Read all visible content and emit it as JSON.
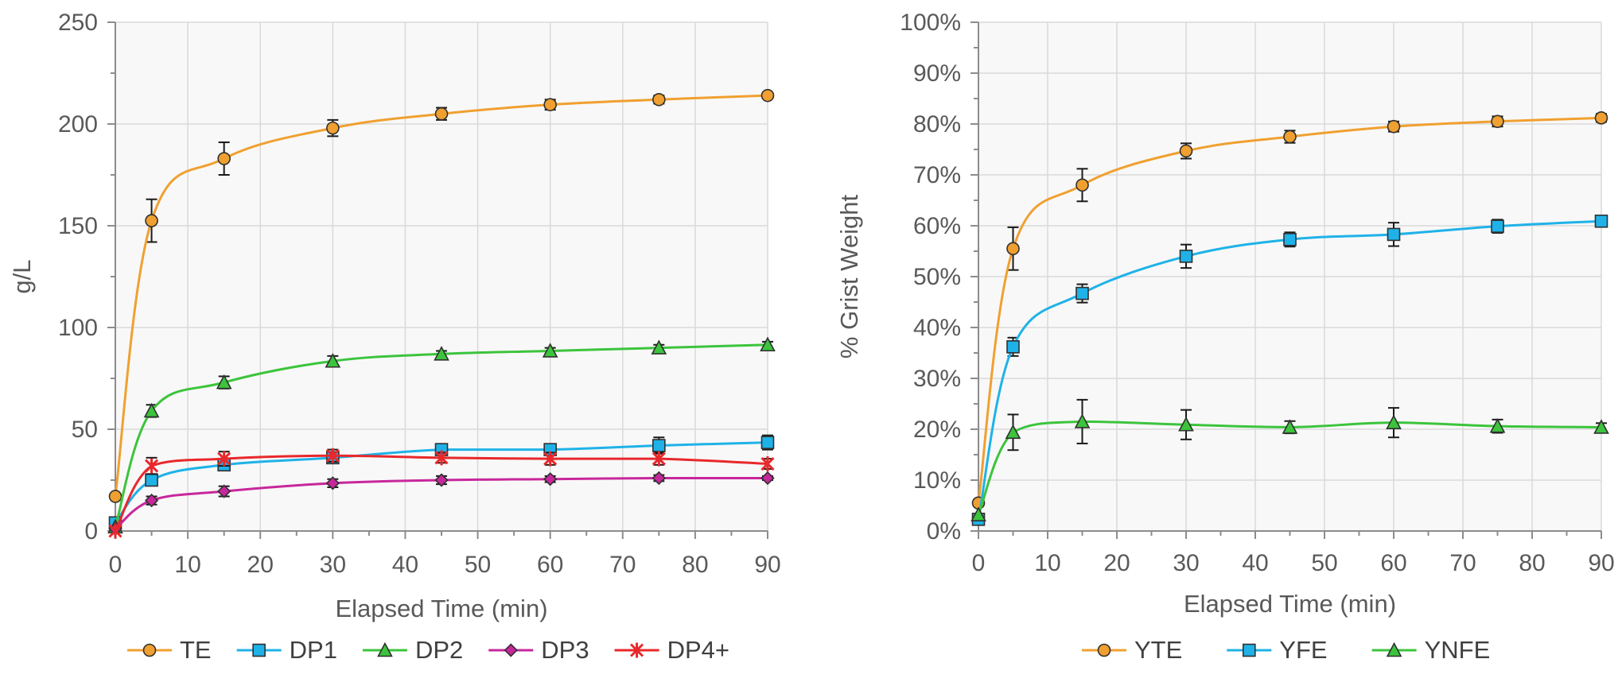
{
  "chart_data": [
    {
      "type": "line",
      "title": "",
      "xlabel": "Elapsed Time (min)",
      "ylabel": "g/L",
      "xlim": [
        0,
        90
      ],
      "ylim": [
        0,
        250
      ],
      "xticks": [
        0,
        10,
        20,
        30,
        40,
        50,
        60,
        70,
        80,
        90
      ],
      "yticks": [
        0,
        50,
        100,
        150,
        200,
        250
      ],
      "ytick_labels": [
        "0",
        "50",
        "100",
        "150",
        "200",
        "250"
      ],
      "grid": true,
      "legend_position": "bottom",
      "series": [
        {
          "name": "TE",
          "color": "#f0a030",
          "marker": "circle",
          "x": [
            0,
            5,
            15,
            30,
            45,
            60,
            75,
            90
          ],
          "y": [
            17,
            152.5,
            183,
            198,
            205,
            209.5,
            212,
            214
          ],
          "err": [
            0,
            10.5,
            8,
            4,
            3,
            2.5,
            2,
            1.5
          ]
        },
        {
          "name": "DP1",
          "color": "#1fb2e8",
          "marker": "square",
          "x": [
            0,
            5,
            15,
            30,
            45,
            60,
            75,
            90
          ],
          "y": [
            4,
            25,
            32.5,
            36,
            40,
            40,
            42,
            43.5
          ],
          "err": [
            0,
            1.5,
            2,
            2,
            2.5,
            2.5,
            4,
            3.5
          ]
        },
        {
          "name": "DP2",
          "color": "#3cc43c",
          "marker": "triangle",
          "x": [
            0,
            5,
            15,
            30,
            45,
            60,
            75,
            90
          ],
          "y": [
            2,
            59,
            73,
            83.5,
            87,
            88.5,
            90,
            91.5
          ],
          "err": [
            0,
            3,
            3,
            2.5,
            1.5,
            1.5,
            1.5,
            1.5
          ]
        },
        {
          "name": "DP3",
          "color": "#c8279b",
          "marker": "diamond",
          "x": [
            0,
            5,
            15,
            30,
            45,
            60,
            75,
            90
          ],
          "y": [
            1,
            15,
            19.5,
            23.5,
            25,
            25.5,
            26,
            26
          ],
          "err": [
            0,
            2,
            2.5,
            2,
            2,
            1.5,
            1.5,
            1
          ]
        },
        {
          "name": "DP4+",
          "color": "#e8282b",
          "marker": "star",
          "x": [
            0,
            5,
            15,
            30,
            45,
            60,
            75,
            90
          ],
          "y": [
            0,
            32,
            35.5,
            37,
            36,
            35.5,
            35.5,
            33
          ],
          "err": [
            0,
            4,
            3.5,
            3,
            2.5,
            3,
            3,
            2.5
          ]
        }
      ]
    },
    {
      "type": "line",
      "title": "",
      "xlabel": "Elapsed Time (min)",
      "ylabel": "% Grist Weight",
      "xlim": [
        0,
        90
      ],
      "ylim": [
        0,
        100
      ],
      "xticks": [
        0,
        10,
        20,
        30,
        40,
        50,
        60,
        70,
        80,
        90
      ],
      "yticks": [
        0,
        10,
        20,
        30,
        40,
        50,
        60,
        70,
        80,
        90,
        100
      ],
      "ytick_labels": [
        "0%",
        "10%",
        "20%",
        "30%",
        "40%",
        "50%",
        "60%",
        "70%",
        "80%",
        "90%",
        "100%"
      ],
      "grid": true,
      "legend_position": "bottom",
      "series": [
        {
          "name": "YTE",
          "color": "#f0a030",
          "marker": "circle",
          "x": [
            0,
            5,
            15,
            30,
            45,
            60,
            75,
            90
          ],
          "y": [
            5.5,
            55.5,
            68,
            74.7,
            77.5,
            79.5,
            80.5,
            81.2
          ],
          "err": [
            0,
            4.2,
            3.2,
            1.5,
            1.2,
            1,
            1,
            0.8
          ]
        },
        {
          "name": "YFE",
          "color": "#1fb2e8",
          "marker": "square",
          "x": [
            0,
            5,
            15,
            30,
            45,
            60,
            75,
            90
          ],
          "y": [
            2.3,
            36.2,
            46.7,
            54,
            57.3,
            58.3,
            59.9,
            60.9
          ],
          "err": [
            0,
            1.8,
            1.8,
            2.3,
            1.4,
            2.3,
            1.3,
            1.1
          ]
        },
        {
          "name": "YNFE",
          "color": "#3cc43c",
          "marker": "triangle",
          "x": [
            0,
            5,
            15,
            30,
            45,
            60,
            75,
            90
          ],
          "y": [
            3.2,
            19.4,
            21.5,
            20.9,
            20.4,
            21.3,
            20.6,
            20.4
          ],
          "err": [
            0,
            3.5,
            4.3,
            2.9,
            1.2,
            2.9,
            1.3,
            0.8
          ]
        }
      ]
    }
  ]
}
